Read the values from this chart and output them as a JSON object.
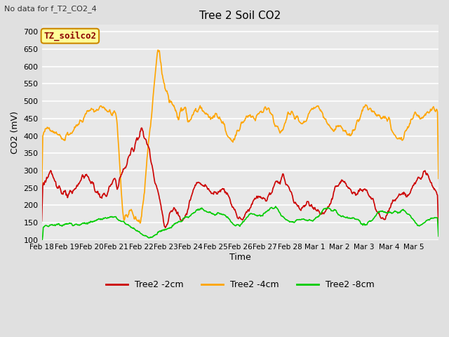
{
  "title": "Tree 2 Soil CO2",
  "top_left_text": "No data for f_T2_CO2_4",
  "box_label": "TZ_soilco2",
  "xlabel": "Time",
  "ylabel": "CO2 (mV)",
  "ylim": [
    100,
    720
  ],
  "yticks": [
    100,
    150,
    200,
    250,
    300,
    350,
    400,
    450,
    500,
    550,
    600,
    650,
    700
  ],
  "background_color": "#e0e0e0",
  "plot_bg_color": "#e8e8e8",
  "grid_color": "#ffffff",
  "series": {
    "red": {
      "label": "Tree2 -2cm",
      "color": "#cc0000",
      "lw": 1.2
    },
    "orange": {
      "label": "Tree2 -4cm",
      "color": "#ffa500",
      "lw": 1.2
    },
    "green": {
      "label": "Tree2 -8cm",
      "color": "#00cc00",
      "lw": 1.2
    }
  },
  "xtick_labels": [
    "Feb 18",
    "Feb 19",
    "Feb 20",
    "Feb 21",
    "Feb 22",
    "Feb 23",
    "Feb 24",
    "Feb 25",
    "Feb 26",
    "Feb 27",
    "Feb 28",
    "Mar 1",
    "Mar 2",
    "Mar 3",
    "Mar 4",
    "Mar 5"
  ],
  "figsize": [
    6.4,
    4.8
  ],
  "dpi": 100
}
